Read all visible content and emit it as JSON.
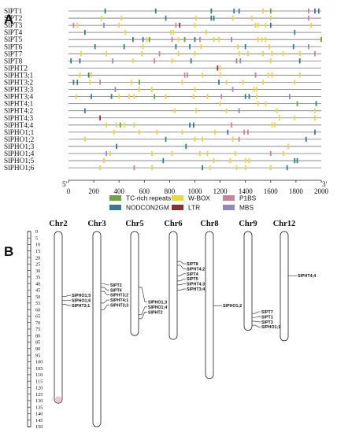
{
  "panel_a": {
    "label": "A",
    "genes": [
      "SlPT1",
      "SlPT2",
      "SlPT3",
      "SlPT4",
      "SlPT5",
      "SlPT6",
      "SlPT7",
      "SlPT8",
      "SlPHT2",
      "SlPHT3;1",
      "SlPHT3;2",
      "SlPHT3;3",
      "SlPHT3;4",
      "SlPHT4;1",
      "SlPHT4;2",
      "SlPHT4;3",
      "SlPHT4;4",
      "SlPHO1;1",
      "SlPHO1;2",
      "SlPHO1;3",
      "SlPHO1;4",
      "SlPHO1;5",
      "SlPHO1;6"
    ],
    "five_prime": "5'",
    "three_prime": "3'",
    "x_ticks": [
      "0",
      "200",
      "400",
      "600",
      "800",
      "1000",
      "1200",
      "1400",
      "1600",
      "1800",
      "2000"
    ],
    "x_range": [
      0,
      2000
    ],
    "legend": [
      {
        "name": "TC-rich repeats",
        "color": "#6fa343"
      },
      {
        "name": "W-BOX",
        "color": "#e6d84a"
      },
      {
        "name": "P1BS",
        "color": "#c98595"
      },
      {
        "name": "NODCON2GM",
        "color": "#3b7a8a"
      },
      {
        "name": "LTR",
        "color": "#8a2f36"
      },
      {
        "name": "MBS",
        "color": "#8e8db0"
      }
    ],
    "elements": [
      [
        {
          "type": "NODCON2GM",
          "pos": 290
        },
        {
          "type": "NODCON2GM",
          "pos": 690
        },
        {
          "type": "NODCON2GM",
          "pos": 1130
        },
        {
          "type": "NODCON2GM",
          "pos": 1310
        },
        {
          "type": "NODCON2GM",
          "pos": 1350
        },
        {
          "type": "W-BOX",
          "pos": 1540
        },
        {
          "type": "TC-rich repeats",
          "pos": 1600
        },
        {
          "type": "P1BS",
          "pos": 1900
        },
        {
          "type": "NODCON2GM",
          "pos": 1950
        },
        {
          "type": "NODCON2GM",
          "pos": 1980
        }
      ],
      [
        {
          "type": "W-BOX",
          "pos": 260
        },
        {
          "type": "W-BOX",
          "pos": 420
        },
        {
          "type": "NODCON2GM",
          "pos": 770
        },
        {
          "type": "W-BOX",
          "pos": 1010
        },
        {
          "type": "NODCON2GM",
          "pos": 1130
        },
        {
          "type": "NODCON2GM",
          "pos": 1150
        },
        {
          "type": "W-BOX",
          "pos": 1300
        },
        {
          "type": "W-BOX",
          "pos": 1450
        },
        {
          "type": "W-BOX",
          "pos": 1600
        },
        {
          "type": "P1BS",
          "pos": 1900
        }
      ],
      [
        {
          "type": "P1BS",
          "pos": 40
        },
        {
          "type": "W-BOX",
          "pos": 70
        },
        {
          "type": "MBS",
          "pos": 280
        },
        {
          "type": "W-BOX",
          "pos": 400
        },
        {
          "type": "P1BS",
          "pos": 850
        },
        {
          "type": "LTR",
          "pos": 880
        },
        {
          "type": "W-BOX",
          "pos": 1000
        },
        {
          "type": "W-BOX",
          "pos": 1480
        },
        {
          "type": "W-BOX",
          "pos": 1500
        },
        {
          "type": "W-BOX",
          "pos": 1560
        },
        {
          "type": "NODCON2GM",
          "pos": 1600
        },
        {
          "type": "W-BOX",
          "pos": 1920
        }
      ],
      [
        {
          "type": "NODCON2GM",
          "pos": 130
        },
        {
          "type": "W-BOX",
          "pos": 450
        },
        {
          "type": "W-BOX",
          "pos": 810
        },
        {
          "type": "W-BOX",
          "pos": 830
        },
        {
          "type": "W-BOX",
          "pos": 1090
        },
        {
          "type": "NODCON2GM",
          "pos": 1790
        }
      ],
      [
        {
          "type": "NODCON2GM",
          "pos": 510
        },
        {
          "type": "NODCON2GM",
          "pos": 590
        },
        {
          "type": "W-BOX",
          "pos": 620
        },
        {
          "type": "TC-rich repeats",
          "pos": 640
        },
        {
          "type": "P1BS",
          "pos": 820
        },
        {
          "type": "W-BOX",
          "pos": 870
        },
        {
          "type": "TC-rich repeats",
          "pos": 920
        },
        {
          "type": "NODCON2GM",
          "pos": 1000
        },
        {
          "type": "P1BS",
          "pos": 1040
        },
        {
          "type": "W-BOX",
          "pos": 1150
        },
        {
          "type": "W-BOX",
          "pos": 1190
        },
        {
          "type": "MBS",
          "pos": 1290
        },
        {
          "type": "W-BOX",
          "pos": 1500
        },
        {
          "type": "W-BOX",
          "pos": 1530
        },
        {
          "type": "W-BOX",
          "pos": 1560
        },
        {
          "type": "TC-rich repeats",
          "pos": 2000
        }
      ],
      [
        {
          "type": "NODCON2GM",
          "pos": 210
        },
        {
          "type": "NODCON2GM",
          "pos": 440
        },
        {
          "type": "W-BOX",
          "pos": 590
        },
        {
          "type": "NODCON2GM",
          "pos": 850
        },
        {
          "type": "NODCON2GM",
          "pos": 960
        },
        {
          "type": "W-BOX",
          "pos": 1050
        },
        {
          "type": "W-BOX",
          "pos": 1340
        },
        {
          "type": "NODCON2GM",
          "pos": 1400
        },
        {
          "type": "W-BOX",
          "pos": 1590
        },
        {
          "type": "NODCON2GM",
          "pos": 1780
        },
        {
          "type": "MBS",
          "pos": 1900
        }
      ],
      [
        {
          "type": "W-BOX",
          "pos": 100
        },
        {
          "type": "W-BOX",
          "pos": 300
        },
        {
          "type": "W-BOX",
          "pos": 580
        },
        {
          "type": "P1BS",
          "pos": 720
        },
        {
          "type": "W-BOX",
          "pos": 870
        },
        {
          "type": "W-BOX",
          "pos": 1000
        },
        {
          "type": "W-BOX",
          "pos": 1350
        },
        {
          "type": "W-BOX",
          "pos": 1420
        },
        {
          "type": "W-BOX",
          "pos": 1540
        },
        {
          "type": "W-BOX",
          "pos": 1610
        },
        {
          "type": "W-BOX",
          "pos": 1700
        },
        {
          "type": "W-BOX",
          "pos": 1830
        },
        {
          "type": "P1BS",
          "pos": 1950
        }
      ],
      [
        {
          "type": "NODCON2GM",
          "pos": 20
        },
        {
          "type": "NODCON2GM",
          "pos": 90
        },
        {
          "type": "MBS",
          "pos": 350
        },
        {
          "type": "W-BOX",
          "pos": 510
        },
        {
          "type": "P1BS",
          "pos": 680
        },
        {
          "type": "W-BOX",
          "pos": 820
        },
        {
          "type": "NODCON2GM",
          "pos": 970
        },
        {
          "type": "MBS",
          "pos": 1330
        },
        {
          "type": "MBS",
          "pos": 1360
        },
        {
          "type": "W-BOX",
          "pos": 1600
        },
        {
          "type": "NODCON2GM",
          "pos": 1830
        }
      ],
      [
        {
          "type": "LTR",
          "pos": 1180
        },
        {
          "type": "W-BOX",
          "pos": 1200
        }
      ],
      [
        {
          "type": "W-BOX",
          "pos": 90
        },
        {
          "type": "NODCON2GM",
          "pos": 160
        },
        {
          "type": "W-BOX",
          "pos": 180
        },
        {
          "type": "P1BS",
          "pos": 920
        },
        {
          "type": "P1BS",
          "pos": 940
        },
        {
          "type": "W-BOX",
          "pos": 1060
        },
        {
          "type": "W-BOX",
          "pos": 1200
        },
        {
          "type": "P1BS",
          "pos": 1480
        },
        {
          "type": "W-BOX",
          "pos": 1580
        },
        {
          "type": "W-BOX",
          "pos": 1610
        },
        {
          "type": "W-BOX",
          "pos": 1830
        }
      ],
      [
        {
          "type": "NODCON2GM",
          "pos": 40
        },
        {
          "type": "NODCON2GM",
          "pos": 70
        },
        {
          "type": "W-BOX",
          "pos": 170
        },
        {
          "type": "P1BS",
          "pos": 250
        },
        {
          "type": "W-BOX",
          "pos": 500
        },
        {
          "type": "TC-rich repeats",
          "pos": 560
        },
        {
          "type": "W-BOX",
          "pos": 900
        },
        {
          "type": "NODCON2GM",
          "pos": 1190
        },
        {
          "type": "W-BOX",
          "pos": 1250
        },
        {
          "type": "W-BOX",
          "pos": 1380
        },
        {
          "type": "W-BOX",
          "pos": 1540
        },
        {
          "type": "W-BOX",
          "pos": 1790
        }
      ],
      [
        {
          "type": "MBS",
          "pos": 370
        },
        {
          "type": "W-BOX",
          "pos": 560
        },
        {
          "type": "W-BOX",
          "pos": 660
        },
        {
          "type": "W-BOX",
          "pos": 1000
        },
        {
          "type": "P1BS",
          "pos": 1300
        },
        {
          "type": "W-BOX",
          "pos": 1470
        },
        {
          "type": "W-BOX",
          "pos": 1490
        }
      ],
      [
        {
          "type": "W-BOX",
          "pos": 60
        },
        {
          "type": "NODCON2GM",
          "pos": 180
        },
        {
          "type": "NODCON2GM",
          "pos": 340
        },
        {
          "type": "W-BOX",
          "pos": 400
        },
        {
          "type": "W-BOX",
          "pos": 480
        },
        {
          "type": "W-BOX",
          "pos": 520
        },
        {
          "type": "TC-rich repeats",
          "pos": 680
        },
        {
          "type": "W-BOX",
          "pos": 770
        },
        {
          "type": "W-BOX",
          "pos": 990
        },
        {
          "type": "W-BOX",
          "pos": 1100
        },
        {
          "type": "P1BS",
          "pos": 1210
        },
        {
          "type": "NODCON2GM",
          "pos": 1400
        },
        {
          "type": "NODCON2GM",
          "pos": 1430
        },
        {
          "type": "W-BOX",
          "pos": 1490
        },
        {
          "type": "MBS",
          "pos": 1750
        }
      ],
      [
        {
          "type": "W-BOX",
          "pos": 1200
        },
        {
          "type": "W-BOX",
          "pos": 1500
        },
        {
          "type": "W-BOX",
          "pos": 1560
        },
        {
          "type": "TC-rich repeats",
          "pos": 1810
        },
        {
          "type": "NODCON2GM",
          "pos": 1960
        }
      ],
      [
        {
          "type": "NODCON2GM",
          "pos": 130
        },
        {
          "type": "W-BOX",
          "pos": 840
        },
        {
          "type": "W-BOX",
          "pos": 1010
        },
        {
          "type": "W-BOX",
          "pos": 1250
        },
        {
          "type": "MBS",
          "pos": 1350
        },
        {
          "type": "W-BOX",
          "pos": 1650
        },
        {
          "type": "W-BOX",
          "pos": 1950
        }
      ],
      [
        {
          "type": "LTR",
          "pos": 250
        },
        {
          "type": "W-BOX",
          "pos": 1670
        },
        {
          "type": "W-BOX",
          "pos": 1790
        },
        {
          "type": "W-BOX",
          "pos": 1950
        }
      ],
      [
        {
          "type": "W-BOX",
          "pos": 300
        },
        {
          "type": "W-BOX",
          "pos": 380
        },
        {
          "type": "TC-rich repeats",
          "pos": 410
        },
        {
          "type": "W-BOX",
          "pos": 440
        },
        {
          "type": "W-BOX",
          "pos": 520
        },
        {
          "type": "NODCON2GM",
          "pos": 960
        },
        {
          "type": "NODCON2GM",
          "pos": 990
        },
        {
          "type": "P1BS",
          "pos": 1290
        },
        {
          "type": "W-BOX",
          "pos": 1610
        },
        {
          "type": "W-BOX",
          "pos": 1630
        }
      ],
      [
        {
          "type": "W-BOX",
          "pos": 360
        },
        {
          "type": "W-BOX",
          "pos": 560
        },
        {
          "type": "W-BOX",
          "pos": 700
        },
        {
          "type": "W-BOX",
          "pos": 900
        },
        {
          "type": "W-BOX",
          "pos": 1160
        },
        {
          "type": "NODCON2GM",
          "pos": 1260
        },
        {
          "type": "P1BS",
          "pos": 1390
        },
        {
          "type": "P1BS",
          "pos": 1420
        },
        {
          "type": "NODCON2GM",
          "pos": 1950
        }
      ],
      [
        {
          "type": "W-BOX",
          "pos": 130
        },
        {
          "type": "NODCON2GM",
          "pos": 770
        },
        {
          "type": "W-BOX",
          "pos": 1000
        },
        {
          "type": "W-BOX",
          "pos": 1060
        },
        {
          "type": "W-BOX",
          "pos": 1300
        },
        {
          "type": "P1BS",
          "pos": 1350
        },
        {
          "type": "NODCON2GM",
          "pos": 1880
        }
      ],
      [
        {
          "type": "NODCON2GM",
          "pos": 380
        },
        {
          "type": "NODCON2GM",
          "pos": 930
        },
        {
          "type": "W-BOX",
          "pos": 1740
        }
      ],
      [
        {
          "type": "MBS",
          "pos": 300
        },
        {
          "type": "W-BOX",
          "pos": 330
        },
        {
          "type": "W-BOX",
          "pos": 660
        },
        {
          "type": "W-BOX",
          "pos": 820
        },
        {
          "type": "W-BOX",
          "pos": 1040
        },
        {
          "type": "W-BOX",
          "pos": 1100
        },
        {
          "type": "W-BOX",
          "pos": 1320
        },
        {
          "type": "P1BS",
          "pos": 1600
        },
        {
          "type": "W-BOX",
          "pos": 1700
        }
      ],
      [
        {
          "type": "W-BOX",
          "pos": 280
        },
        {
          "type": "NODCON2GM",
          "pos": 750
        },
        {
          "type": "W-BOX",
          "pos": 1150
        },
        {
          "type": "W-BOX",
          "pos": 1280
        },
        {
          "type": "W-BOX",
          "pos": 1400
        },
        {
          "type": "W-BOX",
          "pos": 1430
        },
        {
          "type": "NODCON2GM",
          "pos": 1790
        },
        {
          "type": "NODCON2GM",
          "pos": 1810
        }
      ],
      [
        {
          "type": "W-BOX",
          "pos": 250
        },
        {
          "type": "P1BS",
          "pos": 520
        },
        {
          "type": "W-BOX",
          "pos": 660
        },
        {
          "type": "NODCON2GM",
          "pos": 1060
        },
        {
          "type": "W-BOX",
          "pos": 1120
        },
        {
          "type": "W-BOX",
          "pos": 1330
        },
        {
          "type": "W-BOX",
          "pos": 1400
        },
        {
          "type": "W-BOX",
          "pos": 1600
        },
        {
          "type": "NODCON2GM",
          "pos": 1730
        }
      ]
    ]
  },
  "panel_b": {
    "label": "B",
    "scale_max": 150,
    "scale_step": 5,
    "chromosomes": [
      {
        "name": "Chr2",
        "length": 132,
        "genes": [
          {
            "label": "SlPHO1;5",
            "pos": 50
          },
          {
            "label": "SlPHO1;6",
            "pos": 53
          },
          {
            "label": "SlPHT3;1",
            "pos": 56
          }
        ]
      },
      {
        "name": "Chr3",
        "length": 150,
        "genes": [
          {
            "label": "SlPT2",
            "pos": 40
          },
          {
            "label": "SlPT6",
            "pos": 43
          },
          {
            "label": "SlPHT3;2",
            "pos": 46
          },
          {
            "label": "SlPHT4;1",
            "pos": 55
          },
          {
            "label": "SlPHT3;3",
            "pos": 60
          }
        ]
      },
      {
        "name": "Chr5",
        "length": 80,
        "genes": [
          {
            "label": "SlPHO1;3",
            "pos": 43
          },
          {
            "label": "SlPHO1;4",
            "pos": 64
          },
          {
            "label": "SlPHT2",
            "pos": 67
          }
        ]
      },
      {
        "name": "Chr6",
        "length": 83,
        "genes": [
          {
            "label": "SlPT8",
            "pos": 23
          },
          {
            "label": "SlPHT4;2",
            "pos": 26
          },
          {
            "label": "SlPT4",
            "pos": 34
          },
          {
            "label": "SlPT5",
            "pos": 38
          },
          {
            "label": "SlPHT4;3",
            "pos": 41
          },
          {
            "label": "SlPHT3;4",
            "pos": 45
          }
        ]
      },
      {
        "name": "Chr8",
        "length": 113,
        "genes": [
          {
            "label": "SlPHO1;2",
            "pos": 57
          }
        ]
      },
      {
        "name": "Chr9",
        "length": 76,
        "genes": [
          {
            "label": "SlPT7",
            "pos": 63
          },
          {
            "label": "SlPT1",
            "pos": 66
          },
          {
            "label": "SlPT3",
            "pos": 69
          },
          {
            "label": "SlPHO1;1",
            "pos": 72
          }
        ]
      },
      {
        "name": "Chr12",
        "length": 84,
        "genes": [
          {
            "label": "SlPHT4;4",
            "pos": 34
          }
        ]
      }
    ]
  }
}
